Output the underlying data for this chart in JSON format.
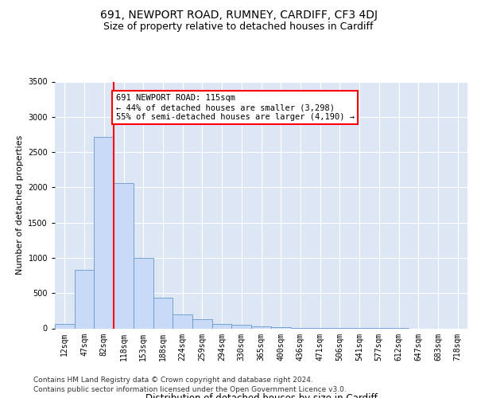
{
  "title": "691, NEWPORT ROAD, RUMNEY, CARDIFF, CF3 4DJ",
  "subtitle": "Size of property relative to detached houses in Cardiff",
  "xlabel": "Distribution of detached houses by size in Cardiff",
  "ylabel": "Number of detached properties",
  "categories": [
    "12sqm",
    "47sqm",
    "82sqm",
    "118sqm",
    "153sqm",
    "188sqm",
    "224sqm",
    "259sqm",
    "294sqm",
    "330sqm",
    "365sqm",
    "400sqm",
    "436sqm",
    "471sqm",
    "506sqm",
    "541sqm",
    "577sqm",
    "612sqm",
    "647sqm",
    "683sqm",
    "718sqm"
  ],
  "values": [
    60,
    830,
    2720,
    2060,
    1000,
    440,
    200,
    130,
    60,
    50,
    30,
    20,
    10,
    5,
    2,
    1,
    1,
    1,
    0,
    0,
    0
  ],
  "bar_color": "#c9daf8",
  "bar_edge_color": "#6699cc",
  "annotation_text": "691 NEWPORT ROAD: 115sqm\n← 44% of detached houses are smaller (3,298)\n55% of semi-detached houses are larger (4,190) →",
  "annotation_box_color": "white",
  "annotation_box_edge_color": "red",
  "vline_color": "red",
  "ylim": [
    0,
    3500
  ],
  "yticks": [
    0,
    500,
    1000,
    1500,
    2000,
    2500,
    3000,
    3500
  ],
  "background_color": "#dce6f5",
  "footer_line1": "Contains HM Land Registry data © Crown copyright and database right 2024.",
  "footer_line2": "Contains public sector information licensed under the Open Government Licence v3.0.",
  "title_fontsize": 10,
  "subtitle_fontsize": 9,
  "xlabel_fontsize": 8.5,
  "ylabel_fontsize": 8,
  "tick_fontsize": 7,
  "annotation_fontsize": 7.5,
  "footer_fontsize": 6.5
}
